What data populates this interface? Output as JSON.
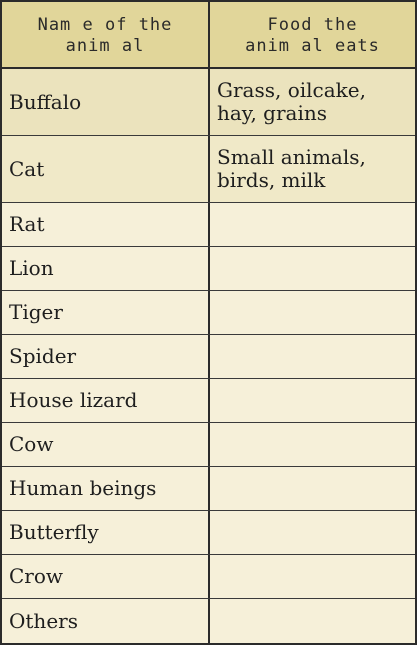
{
  "header": {
    "col1": "Nam e of the\nanim al",
    "col2": "Food the\nanim al eats"
  },
  "rows": [
    {
      "animal": "Buffalo",
      "food": "Grass, oilcake,\nhay, grains"
    },
    {
      "animal": "Cat",
      "food": "Small animals,\nbirds, milk"
    },
    {
      "animal": "Rat",
      "food": ""
    },
    {
      "animal": "Lion",
      "food": ""
    },
    {
      "animal": "Tiger",
      "food": ""
    },
    {
      "animal": "Spider",
      "food": ""
    },
    {
      "animal": "House lizard",
      "food": ""
    },
    {
      "animal": "Cow",
      "food": ""
    },
    {
      "animal": "Human beings",
      "food": ""
    },
    {
      "animal": "Butterfly",
      "food": ""
    },
    {
      "animal": "Crow",
      "food": ""
    },
    {
      "animal": "Others",
      "food": ""
    }
  ],
  "colors": {
    "header_bg": "#e1d69a",
    "row_bg": "#f6f0d9",
    "border": "#2b2b2b"
  }
}
